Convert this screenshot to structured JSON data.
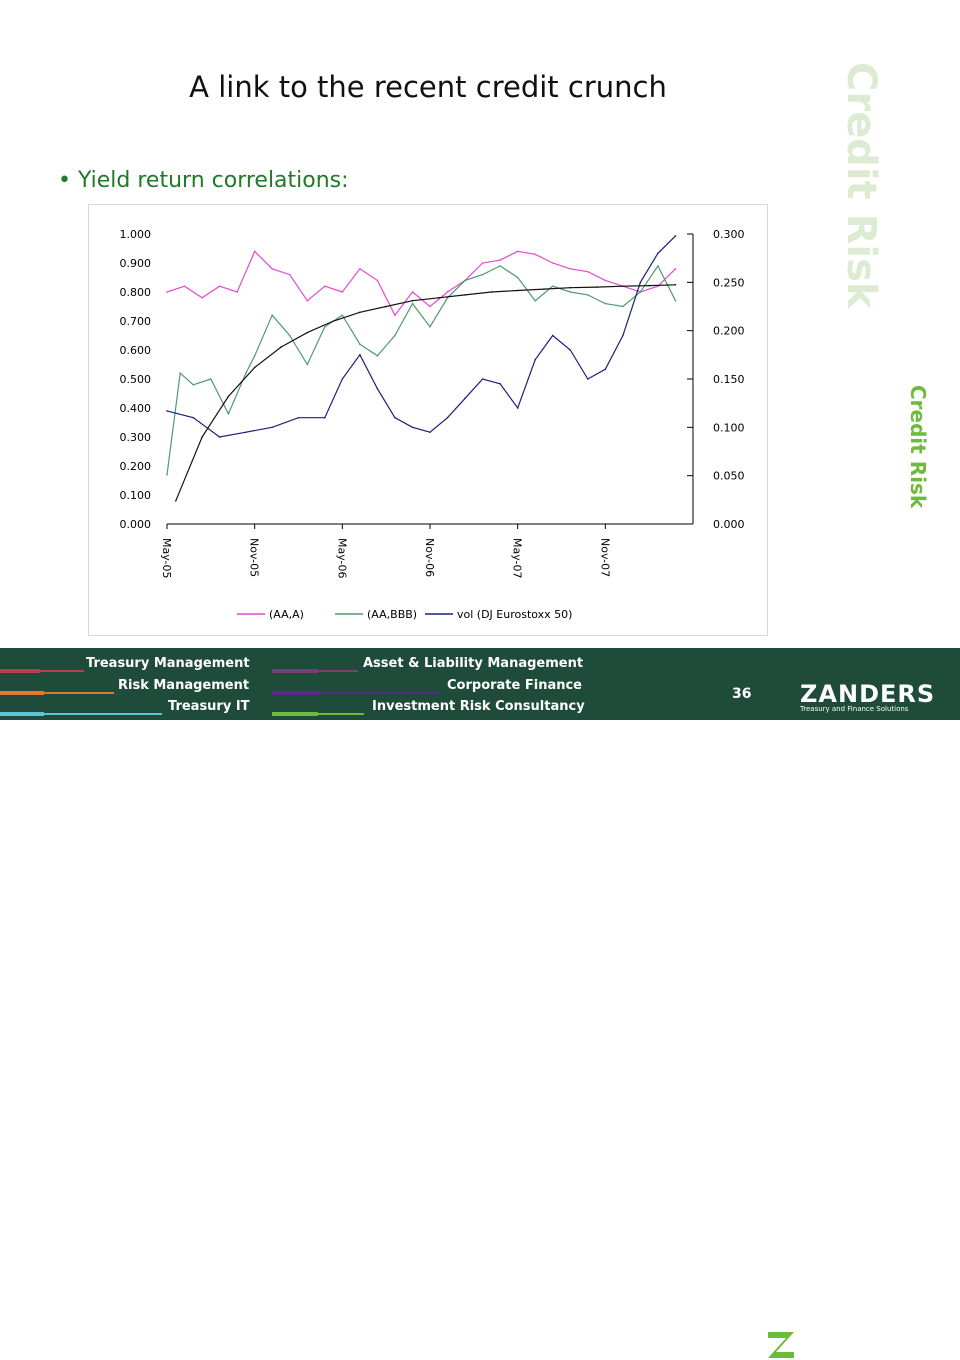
{
  "slide": {
    "title": "A link to the recent credit crunch",
    "bullet": "Yield return correlations:",
    "side_label_large": "Credit Risk",
    "side_label_small": "Credit Risk",
    "page_number": "36"
  },
  "footer": {
    "links": [
      {
        "label": "Treasury Management",
        "color": "#b3404a"
      },
      {
        "label": "Risk Management",
        "color": "#e07a2e"
      },
      {
        "label": "Treasury IT",
        "color": "#5fc3d6"
      },
      {
        "label": "Asset & Liability Management",
        "color": "#7a3d7a"
      },
      {
        "label": "Corporate Finance",
        "color": "#5a2a8a"
      },
      {
        "label": "Investment Risk Consultancy",
        "color": "#6dbb3a"
      }
    ],
    "brand": "ZANDERS",
    "brand_tagline": "Treasury and Finance Solutions"
  },
  "colors": {
    "accent_green": "#1f7a2a",
    "footer_bg": "#1f4b3b"
  },
  "chart_data": {
    "type": "line",
    "x_ticks": [
      "May-05",
      "Nov-05",
      "May-06",
      "Nov-06",
      "May-07",
      "Nov-07"
    ],
    "left_axis": {
      "ticks": [
        "1.000",
        "0.900",
        "0.800",
        "0.700",
        "0.600",
        "0.500",
        "0.400",
        "0.300",
        "0.200",
        "0.100",
        "0.000"
      ],
      "ylim": [
        0,
        1
      ]
    },
    "right_axis": {
      "ticks": [
        "0.300",
        "0.250",
        "0.200",
        "0.150",
        "0.100",
        "0.050",
        "0.000"
      ],
      "ylim": [
        0,
        0.3
      ]
    },
    "legend": [
      "(AA,A)",
      "(AA,BBB)",
      "vol (DJ Eurostoxx 50)"
    ],
    "series": [
      {
        "name": "(AA,A)",
        "color": "#e64ad1",
        "axis": "left",
        "x": [
          0,
          0.2,
          0.4,
          0.6,
          0.8,
          1.0,
          1.2,
          1.4,
          1.6,
          1.8,
          2.0,
          2.2,
          2.4,
          2.6,
          2.8,
          3.0,
          3.2,
          3.4,
          3.6,
          3.8,
          4.0,
          4.2,
          4.4,
          4.6,
          4.8,
          5.0,
          5.2,
          5.4,
          5.6,
          5.8
        ],
        "values": [
          0.8,
          0.82,
          0.78,
          0.82,
          0.8,
          0.94,
          0.88,
          0.86,
          0.77,
          0.82,
          0.8,
          0.88,
          0.84,
          0.72,
          0.8,
          0.75,
          0.8,
          0.84,
          0.9,
          0.91,
          0.94,
          0.93,
          0.9,
          0.88,
          0.87,
          0.84,
          0.82,
          0.8,
          0.82,
          0.88
        ]
      },
      {
        "name": "(AA,BBB)",
        "color": "#4f9a70",
        "axis": "left",
        "x": [
          0,
          0.15,
          0.3,
          0.5,
          0.7,
          0.9,
          1.0,
          1.2,
          1.4,
          1.6,
          1.8,
          2.0,
          2.2,
          2.4,
          2.6,
          2.8,
          3.0,
          3.2,
          3.4,
          3.6,
          3.8,
          4.0,
          4.2,
          4.4,
          4.6,
          4.8,
          5.0,
          5.2,
          5.4,
          5.6,
          5.8
        ],
        "values": [
          0.17,
          0.52,
          0.48,
          0.5,
          0.38,
          0.52,
          0.58,
          0.72,
          0.65,
          0.55,
          0.68,
          0.72,
          0.62,
          0.58,
          0.65,
          0.76,
          0.68,
          0.78,
          0.84,
          0.86,
          0.89,
          0.85,
          0.77,
          0.82,
          0.8,
          0.79,
          0.76,
          0.75,
          0.8,
          0.89,
          0.77
        ]
      },
      {
        "name": "vol (DJ Eurostoxx 50)",
        "color": "#1c1f7a",
        "axis": "right",
        "x": [
          0,
          0.3,
          0.6,
          0.9,
          1.2,
          1.5,
          1.8,
          2.0,
          2.2,
          2.4,
          2.6,
          2.8,
          3.0,
          3.2,
          3.4,
          3.6,
          3.8,
          4.0,
          4.2,
          4.4,
          4.6,
          4.8,
          5.0,
          5.2,
          5.4,
          5.6,
          5.8
        ],
        "values": [
          0.117,
          0.11,
          0.09,
          0.095,
          0.1,
          0.11,
          0.11,
          0.15,
          0.175,
          0.14,
          0.11,
          0.1,
          0.095,
          0.11,
          0.13,
          0.15,
          0.145,
          0.12,
          0.17,
          0.195,
          0.18,
          0.15,
          0.16,
          0.195,
          0.25,
          0.28,
          0.298
        ]
      },
      {
        "name": "",
        "color": "#111111",
        "axis": "left",
        "x": [
          0.1,
          0.4,
          0.7,
          1.0,
          1.3,
          1.6,
          1.9,
          2.2,
          2.5,
          2.8,
          3.1,
          3.4,
          3.7,
          4.0,
          4.3,
          4.6,
          4.9,
          5.2,
          5.5,
          5.8
        ],
        "values": [
          0.08,
          0.3,
          0.44,
          0.54,
          0.61,
          0.66,
          0.7,
          0.73,
          0.75,
          0.77,
          0.78,
          0.79,
          0.8,
          0.805,
          0.81,
          0.815,
          0.817,
          0.82,
          0.822,
          0.825
        ]
      }
    ]
  }
}
